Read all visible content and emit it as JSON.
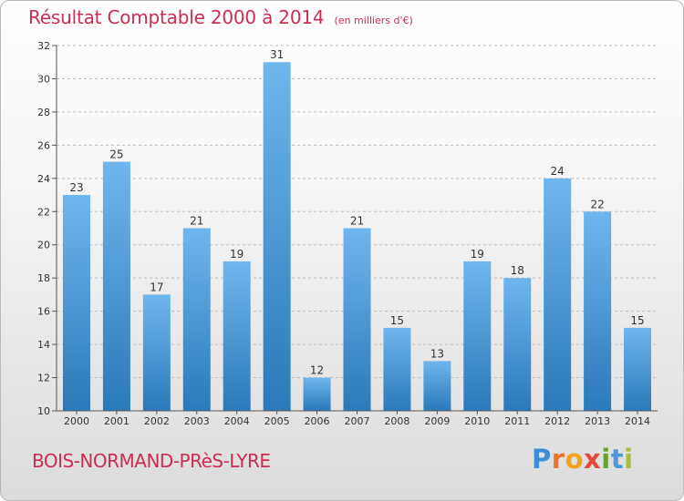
{
  "header": {
    "title": "Résultat Comptable 2000 à 2014",
    "subtitle": "(en milliers d'€)"
  },
  "footer": {
    "commune": "BOIS-NORMAND-PRèS-LYRE",
    "logo": {
      "text": "Proxiti",
      "letters": [
        "P",
        "r",
        "o",
        "x",
        "i",
        "t",
        "i"
      ],
      "colors": [
        "#3a8fd6",
        "#e8732a",
        "#f0a21e",
        "#e14a3b",
        "#6aa12e",
        "#4c9ad6",
        "#a5c23a"
      ]
    }
  },
  "colors": {
    "accent": "#cc2e52",
    "bar_light": "#6fb6ee",
    "bar_dark": "#2a79ba",
    "grid": "#bcbcbc"
  },
  "chart_data": {
    "type": "bar",
    "title": "Résultat Comptable 2000 à 2014",
    "subtitle": "(en milliers d'€)",
    "categories": [
      "2000",
      "2001",
      "2002",
      "2003",
      "2004",
      "2005",
      "2006",
      "2007",
      "2008",
      "2009",
      "2010",
      "2011",
      "2012",
      "2013",
      "2014"
    ],
    "values": [
      23,
      25,
      17,
      21,
      19,
      31,
      12,
      21,
      15,
      13,
      19,
      18,
      24,
      22,
      15
    ],
    "ylim": [
      10,
      32
    ],
    "yticks": [
      10,
      12,
      14,
      16,
      18,
      20,
      22,
      24,
      26,
      28,
      30,
      32
    ],
    "xlabel": "",
    "ylabel": "",
    "grid": "horizontal dashed"
  }
}
